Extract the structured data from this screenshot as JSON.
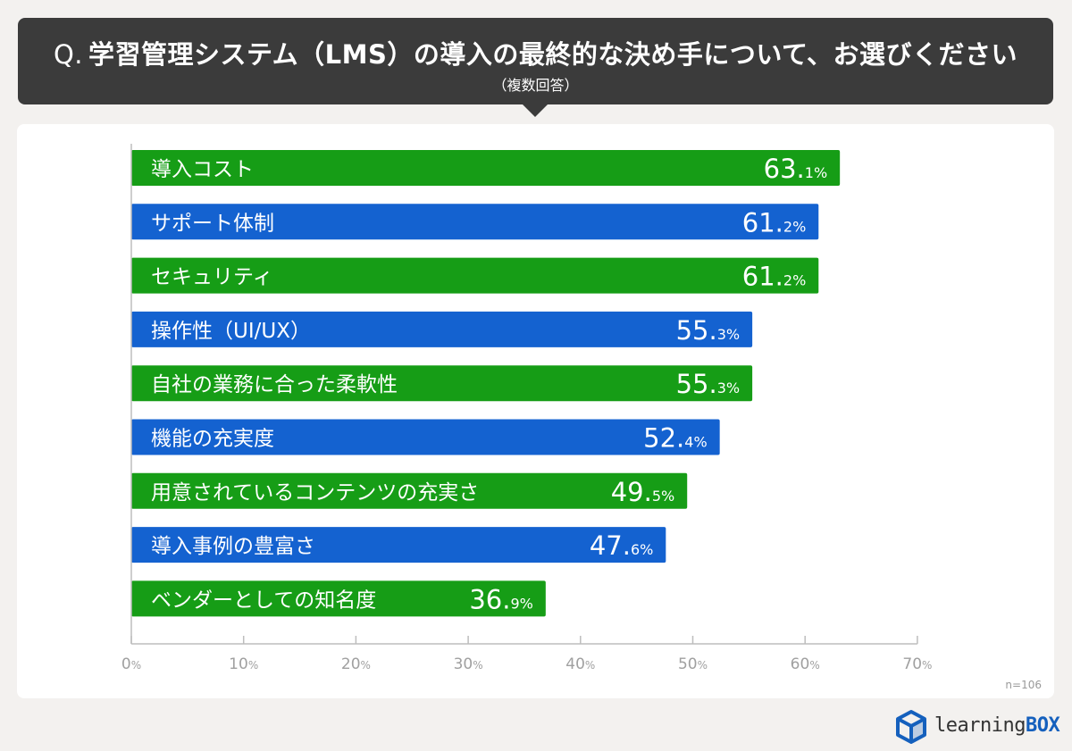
{
  "header": {
    "prefix": "Q.",
    "question": "学習管理システム（LMS）の導入の最終的な決め手について、お選びください",
    "note": "（複数回答）"
  },
  "sample_size": "n=106",
  "brand": {
    "name_a": "learning",
    "name_b": "BOX",
    "icon": "cube-logo-icon"
  },
  "colors": {
    "green": "#169d16",
    "blue": "#1462d0",
    "axis": "#bdbdbd",
    "tick_text": "#a0a0a0"
  },
  "chart_data": {
    "type": "bar",
    "orientation": "horizontal",
    "categories": [
      "導入コスト",
      "サポート体制",
      "セキュリティ",
      "操作性（UI/UX）",
      "自社の業務に合った柔軟性",
      "機能の充実度",
      "用意されているコンテンツの充実さ",
      "導入事例の豊富さ",
      "ベンダーとしての知名度"
    ],
    "values": [
      63.1,
      61.2,
      61.2,
      55.3,
      55.3,
      52.4,
      49.5,
      47.6,
      36.9
    ],
    "value_labels": [
      {
        "int": "63.",
        "dec": "1%"
      },
      {
        "int": "61.",
        "dec": "2%"
      },
      {
        "int": "61.",
        "dec": "2%"
      },
      {
        "int": "55.",
        "dec": "3%"
      },
      {
        "int": "55.",
        "dec": "3%"
      },
      {
        "int": "52.",
        "dec": "4%"
      },
      {
        "int": "49.",
        "dec": "5%"
      },
      {
        "int": "47.",
        "dec": "6%"
      },
      {
        "int": "36.",
        "dec": "9%"
      }
    ],
    "bar_colors": [
      "green",
      "blue",
      "green",
      "blue",
      "green",
      "blue",
      "green",
      "blue",
      "green"
    ],
    "xlim": [
      0,
      70
    ],
    "ticks": [
      {
        "value": 0,
        "num": "0",
        "unit": "%"
      },
      {
        "value": 10,
        "num": "10",
        "unit": "%"
      },
      {
        "value": 20,
        "num": "20",
        "unit": "%"
      },
      {
        "value": 30,
        "num": "30",
        "unit": "%"
      },
      {
        "value": 40,
        "num": "40",
        "unit": "%"
      },
      {
        "value": 50,
        "num": "50",
        "unit": "%"
      },
      {
        "value": 60,
        "num": "60",
        "unit": "%"
      },
      {
        "value": 70,
        "num": "70",
        "unit": "%"
      }
    ],
    "grid": false,
    "legend": "none"
  }
}
